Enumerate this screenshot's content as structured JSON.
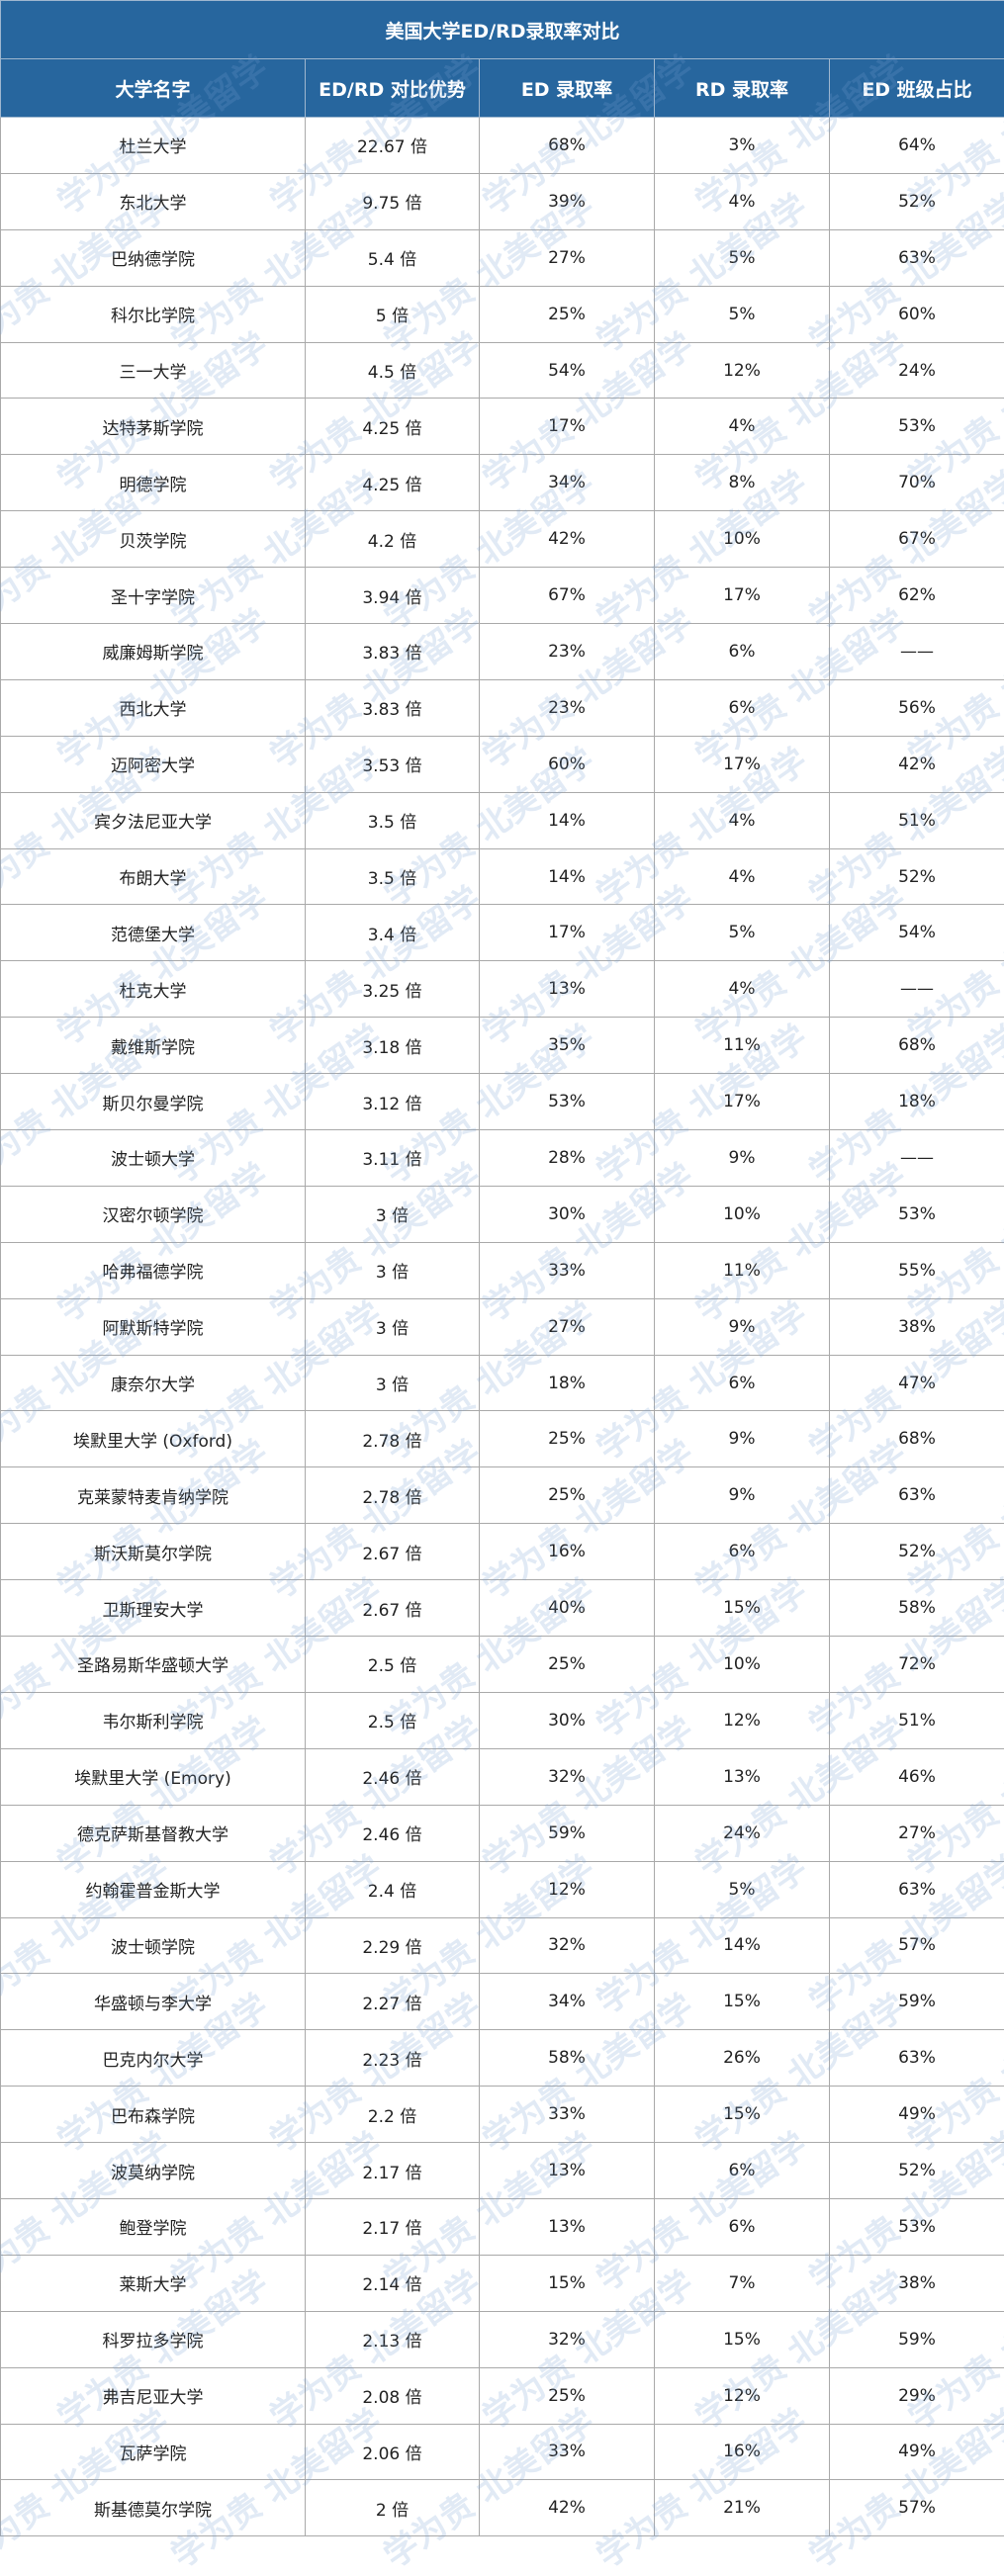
{
  "title": "美国大学ED/RD录取率对比",
  "headers": [
    "大学名字",
    "ED/RD 对比优势",
    "ED 录取率",
    "RD 录取率",
    "ED 班级占比"
  ],
  "watermark": "学为贵 北美留学",
  "colors": {
    "header_bg": "#27669e",
    "header_text": "#ffffff",
    "watermark": "#a0bde0"
  },
  "rows": [
    [
      "杜兰大学",
      "22.67 倍",
      "68%",
      "3%",
      "64%"
    ],
    [
      "东北大学",
      "9.75 倍",
      "39%",
      "4%",
      "52%"
    ],
    [
      "巴纳德学院",
      "5.4 倍",
      "27%",
      "5%",
      "63%"
    ],
    [
      "科尔比学院",
      "5 倍",
      "25%",
      "5%",
      "60%"
    ],
    [
      "三一大学",
      "4.5 倍",
      "54%",
      "12%",
      "24%"
    ],
    [
      "达特茅斯学院",
      "4.25 倍",
      "17%",
      "4%",
      "53%"
    ],
    [
      "明德学院",
      "4.25 倍",
      "34%",
      "8%",
      "70%"
    ],
    [
      "贝茨学院",
      "4.2 倍",
      "42%",
      "10%",
      "67%"
    ],
    [
      "圣十字学院",
      "3.94 倍",
      "67%",
      "17%",
      "62%"
    ],
    [
      "威廉姆斯学院",
      "3.83 倍",
      "23%",
      "6%",
      "——"
    ],
    [
      "西北大学",
      "3.83 倍",
      "23%",
      "6%",
      "56%"
    ],
    [
      "迈阿密大学",
      "3.53 倍",
      "60%",
      "17%",
      "42%"
    ],
    [
      "宾夕法尼亚大学",
      "3.5 倍",
      "14%",
      "4%",
      "51%"
    ],
    [
      "布朗大学",
      "3.5 倍",
      "14%",
      "4%",
      "52%"
    ],
    [
      "范德堡大学",
      "3.4 倍",
      "17%",
      "5%",
      "54%"
    ],
    [
      "杜克大学",
      "3.25 倍",
      "13%",
      "4%",
      "——"
    ],
    [
      "戴维斯学院",
      "3.18 倍",
      "35%",
      "11%",
      "68%"
    ],
    [
      "斯贝尔曼学院",
      "3.12 倍",
      "53%",
      "17%",
      "18%"
    ],
    [
      "波士顿大学",
      "3.11 倍",
      "28%",
      "9%",
      "——"
    ],
    [
      "汉密尔顿学院",
      "3 倍",
      "30%",
      "10%",
      "53%"
    ],
    [
      "哈弗福德学院",
      "3 倍",
      "33%",
      "11%",
      "55%"
    ],
    [
      "阿默斯特学院",
      "3 倍",
      "27%",
      "9%",
      "38%"
    ],
    [
      "康奈尔大学",
      "3 倍",
      "18%",
      "6%",
      "47%"
    ],
    [
      "埃默里大学 (Oxford)",
      "2.78 倍",
      "25%",
      "9%",
      "68%"
    ],
    [
      "克莱蒙特麦肯纳学院",
      "2.78 倍",
      "25%",
      "9%",
      "63%"
    ],
    [
      "斯沃斯莫尔学院",
      "2.67 倍",
      "16%",
      "6%",
      "52%"
    ],
    [
      "卫斯理安大学",
      "2.67 倍",
      "40%",
      "15%",
      "58%"
    ],
    [
      "圣路易斯华盛顿大学",
      "2.5 倍",
      "25%",
      "10%",
      "72%"
    ],
    [
      "韦尔斯利学院",
      "2.5 倍",
      "30%",
      "12%",
      "51%"
    ],
    [
      "埃默里大学 (Emory)",
      "2.46 倍",
      "32%",
      "13%",
      "46%"
    ],
    [
      "德克萨斯基督教大学",
      "2.46 倍",
      "59%",
      "24%",
      "27%"
    ],
    [
      "约翰霍普金斯大学",
      "2.4 倍",
      "12%",
      "5%",
      "63%"
    ],
    [
      "波士顿学院",
      "2.29 倍",
      "32%",
      "14%",
      "57%"
    ],
    [
      "华盛顿与李大学",
      "2.27 倍",
      "34%",
      "15%",
      "59%"
    ],
    [
      "巴克内尔大学",
      "2.23 倍",
      "58%",
      "26%",
      "63%"
    ],
    [
      "巴布森学院",
      "2.2 倍",
      "33%",
      "15%",
      "49%"
    ],
    [
      "波莫纳学院",
      "2.17 倍",
      "13%",
      "6%",
      "52%"
    ],
    [
      "鲍登学院",
      "2.17 倍",
      "13%",
      "6%",
      "53%"
    ],
    [
      "莱斯大学",
      "2.14 倍",
      "15%",
      "7%",
      "38%"
    ],
    [
      "科罗拉多学院",
      "2.13 倍",
      "32%",
      "15%",
      "59%"
    ],
    [
      "弗吉尼亚大学",
      "2.08 倍",
      "25%",
      "12%",
      "29%"
    ],
    [
      "瓦萨学院",
      "2.06 倍",
      "33%",
      "16%",
      "49%"
    ],
    [
      "斯基德莫尔学院",
      "2 倍",
      "42%",
      "21%",
      "57%"
    ]
  ]
}
